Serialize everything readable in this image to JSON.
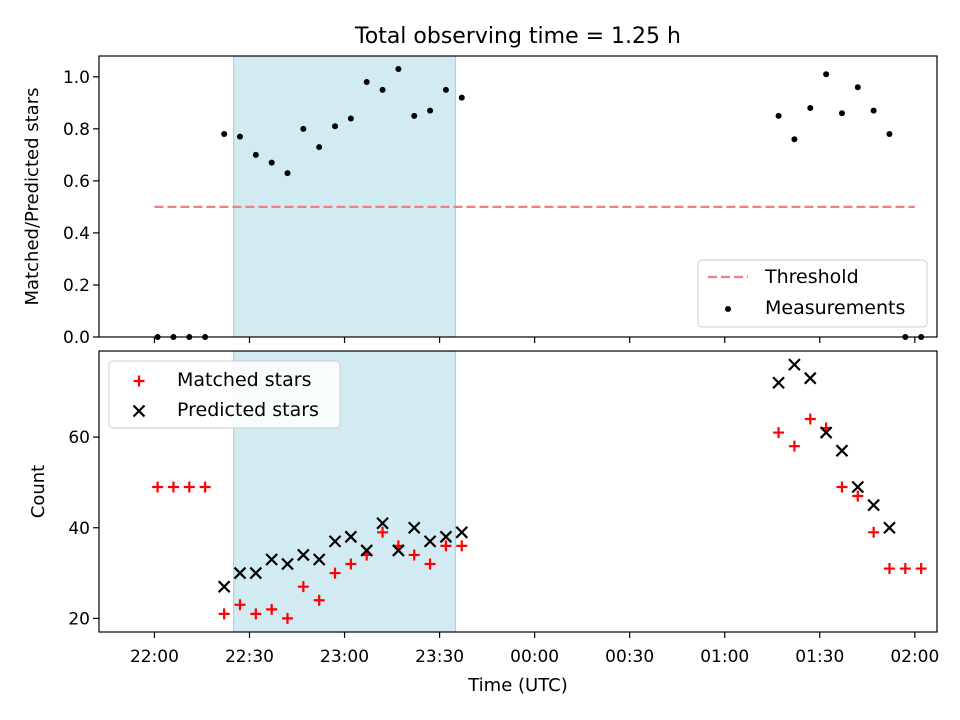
{
  "chart_data": [
    {
      "type": "scatter",
      "title": "Total observing time = 1.25 h",
      "xlabel": "",
      "ylabel": "Matched/Predicted stars",
      "ylim": [
        0,
        1.08
      ],
      "yticks": [
        "0.0",
        "0.2",
        "0.4",
        "0.6",
        "0.8",
        "1.0"
      ],
      "shaded_region": {
        "from": "22:25",
        "to": "23:35",
        "color": "#add8e6"
      },
      "legend": {
        "position": "lower-right",
        "entries": [
          "Threshold",
          "Measurements"
        ]
      },
      "series": [
        {
          "name": "Threshold",
          "style": "dashed-line",
          "color": "#f08080",
          "x": [
            "22:00",
            "02:00"
          ],
          "values": [
            0.5,
            0.5
          ]
        },
        {
          "name": "Measurements",
          "style": "dot",
          "color": "#000000",
          "x": [
            "22:01",
            "22:06",
            "22:11",
            "22:16",
            "22:22",
            "22:27",
            "22:32",
            "22:37",
            "22:42",
            "22:47",
            "22:52",
            "22:57",
            "23:02",
            "23:07",
            "23:12",
            "23:17",
            "23:22",
            "23:27",
            "23:32",
            "23:37",
            "01:17",
            "01:22",
            "01:27",
            "01:32",
            "01:37",
            "01:42",
            "01:47",
            "01:52",
            "01:57",
            "02:02"
          ],
          "values": [
            0,
            0,
            0,
            0,
            0.78,
            0.77,
            0.7,
            0.67,
            0.63,
            0.8,
            0.73,
            0.81,
            0.84,
            0.98,
            0.95,
            1.03,
            0.85,
            0.87,
            0.95,
            0.92,
            0.85,
            0.76,
            0.88,
            1.01,
            0.86,
            0.96,
            0.87,
            0.78,
            0,
            0
          ]
        }
      ]
    },
    {
      "type": "scatter",
      "title": "",
      "xlabel": "Time (UTC)",
      "ylabel": "Count",
      "ylim": [
        17,
        79
      ],
      "yticks": [
        "20",
        "40",
        "60"
      ],
      "x_ticks": [
        "22:00",
        "22:30",
        "23:00",
        "23:30",
        "00:00",
        "00:30",
        "01:00",
        "01:30",
        "02:00"
      ],
      "shaded_region": {
        "from": "22:25",
        "to": "23:35",
        "color": "#add8e6"
      },
      "legend": {
        "position": "top-left",
        "entries": [
          "Matched stars",
          "Predicted stars"
        ]
      },
      "series": [
        {
          "name": "Matched stars",
          "marker": "+",
          "color": "#ff0000",
          "x": [
            "22:01",
            "22:06",
            "22:11",
            "22:16",
            "22:22",
            "22:27",
            "22:32",
            "22:37",
            "22:42",
            "22:47",
            "22:52",
            "22:57",
            "23:02",
            "23:07",
            "23:12",
            "23:17",
            "23:22",
            "23:27",
            "23:32",
            "23:37",
            "01:17",
            "01:22",
            "01:27",
            "01:32",
            "01:37",
            "01:42",
            "01:47",
            "01:52",
            "01:57",
            "02:02"
          ],
          "values": [
            49,
            49,
            49,
            49,
            21,
            23,
            21,
            22,
            20,
            27,
            24,
            30,
            32,
            34,
            39,
            36,
            34,
            32,
            36,
            36,
            61,
            58,
            64,
            62,
            49,
            47,
            39,
            31,
            31,
            31
          ]
        },
        {
          "name": "Predicted stars",
          "marker": "x",
          "color": "#000000",
          "x": [
            "22:22",
            "22:27",
            "22:32",
            "22:37",
            "22:42",
            "22:47",
            "22:52",
            "22:57",
            "23:02",
            "23:07",
            "23:12",
            "23:17",
            "23:22",
            "23:27",
            "23:32",
            "23:37",
            "01:17",
            "01:22",
            "01:27",
            "01:32",
            "01:37",
            "01:42",
            "01:47",
            "01:52"
          ],
          "values": [
            27,
            30,
            30,
            33,
            32,
            34,
            33,
            37,
            38,
            35,
            41,
            35,
            40,
            37,
            38,
            39,
            72,
            76,
            73,
            61,
            57,
            49,
            45,
            40
          ]
        }
      ]
    }
  ]
}
